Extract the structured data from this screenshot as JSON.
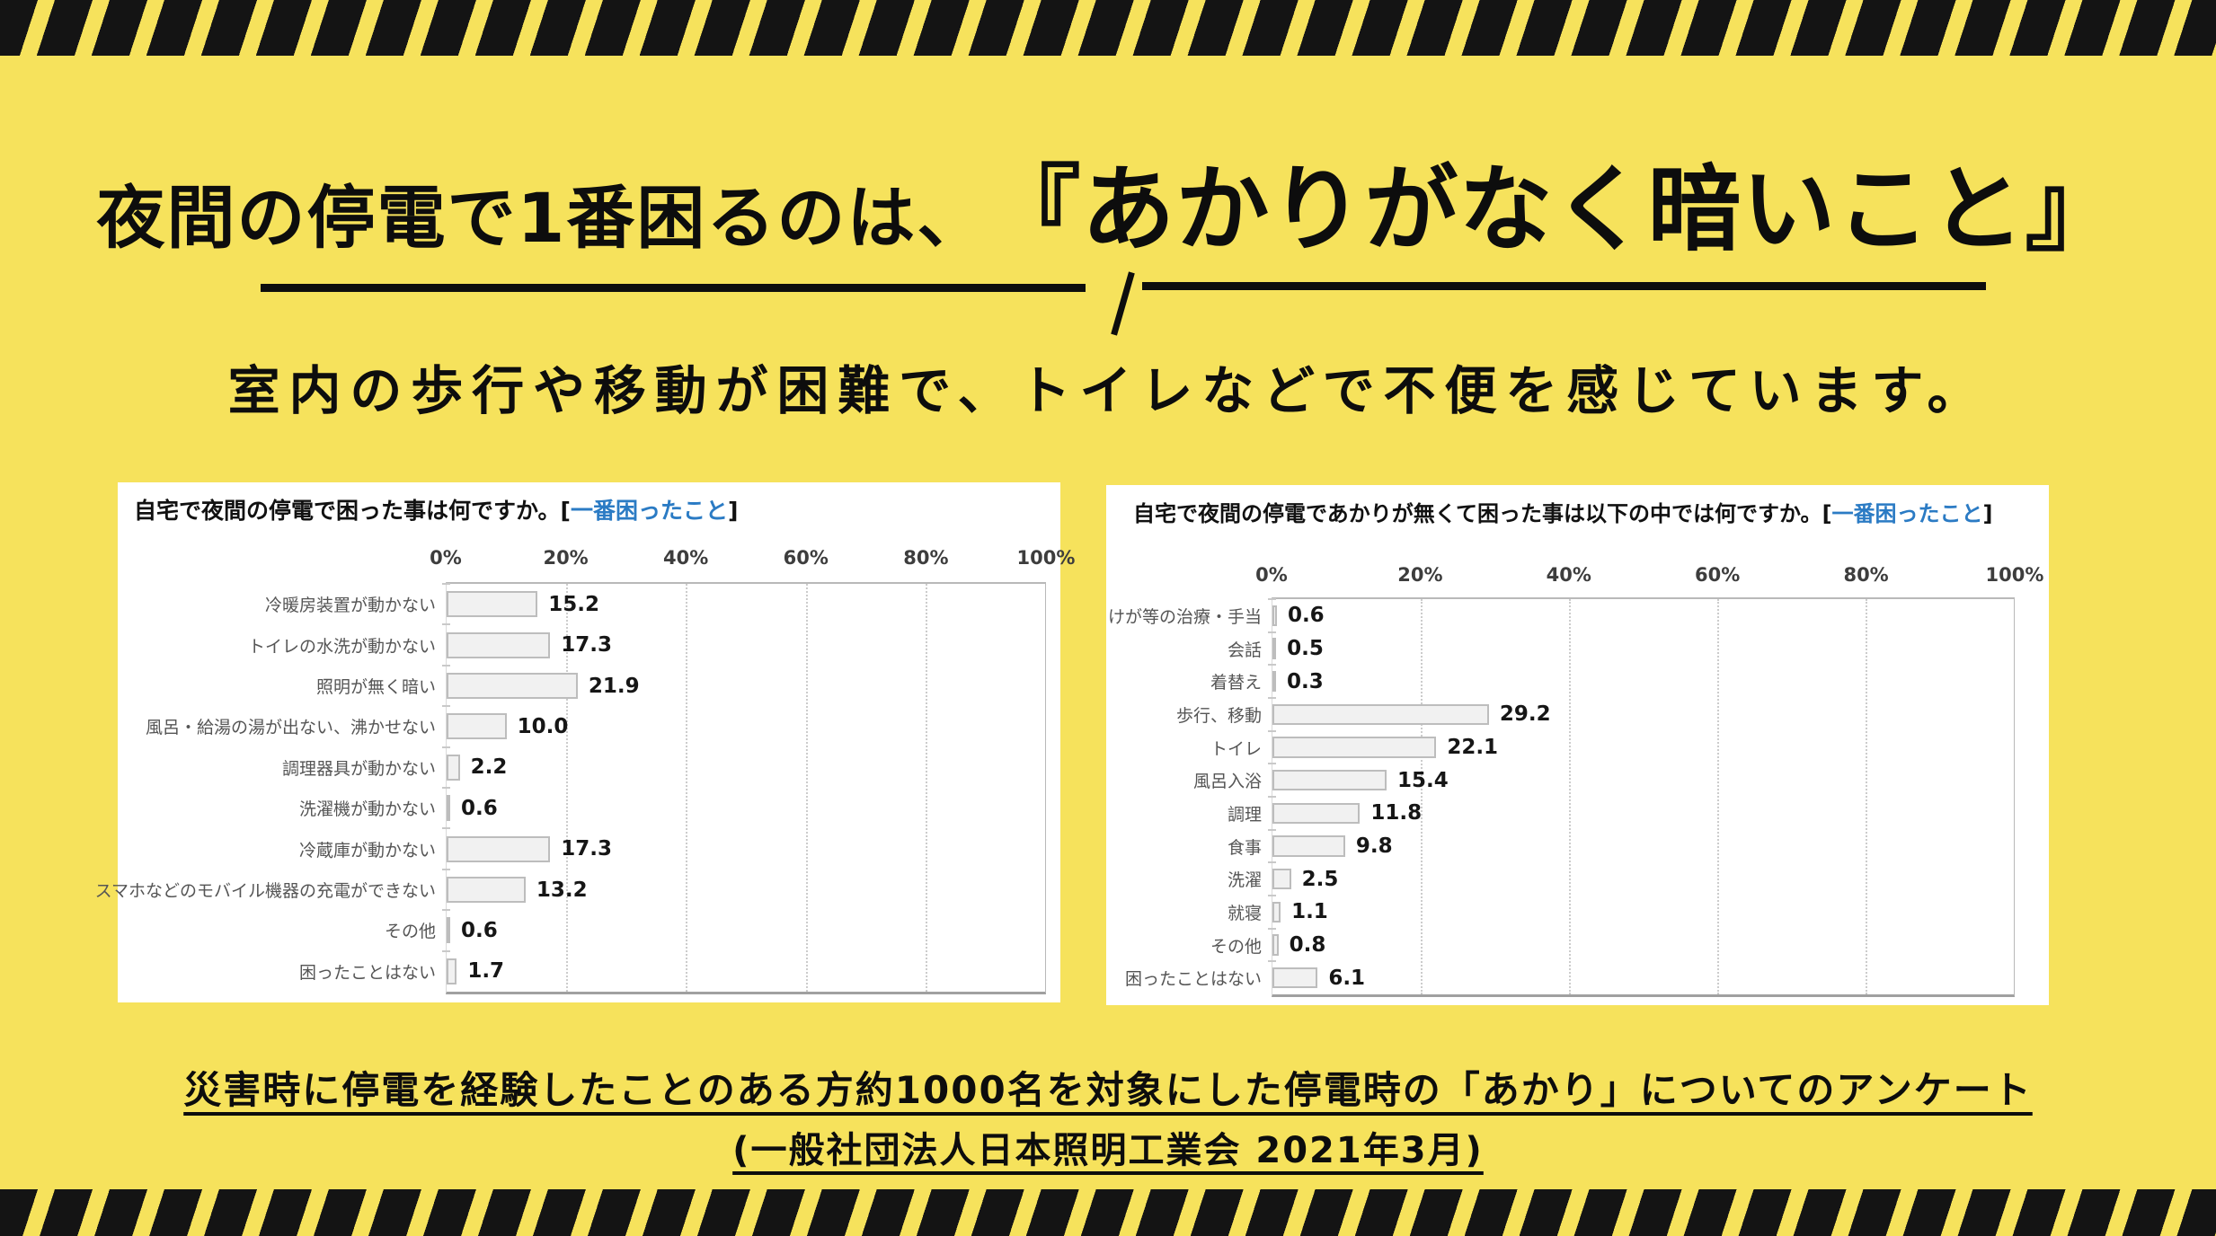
{
  "page": {
    "background_color": "#F6E25C",
    "stripe_color": "#141414",
    "accent_blue": "#2B7BC4"
  },
  "header": {
    "title_prefix": "夜間の停電で1番困るのは、",
    "title_highlight": "『あかりがなく暗いこと』",
    "subtitle": "室内の歩行や移動が困難で、トイレなどで不便を感じています。"
  },
  "footer": {
    "line1": "災害時に停電を経験したことのある方約1000名を対象にした停電時の「あかり」についてのアンケート",
    "line2": "(一般社団法人日本照明工業会 2021年3月)"
  },
  "chart_data": [
    {
      "type": "bar",
      "orientation": "horizontal",
      "title_main": "自宅で夜間の停電で困った事は何ですか。",
      "bracket_open": "[",
      "bracket_label": "一番困ったこと",
      "bracket_close": "]",
      "axis_ticks": [
        "0%",
        "20%",
        "40%",
        "60%",
        "80%",
        "100%"
      ],
      "xlim": [
        0,
        100
      ],
      "grid": true,
      "categories": [
        "冷暖房装置が動かない",
        "トイレの水洗が動かない",
        "照明が無く暗い",
        "風呂・給湯の湯が出ない、沸かせない",
        "調理器具が動かない",
        "洗濯機が動かない",
        "冷蔵庫が動かない",
        "スマホなどのモバイル機器の充電ができない",
        "その他",
        "困ったことはない"
      ],
      "values": [
        15.2,
        17.3,
        21.9,
        10.0,
        2.2,
        0.6,
        17.3,
        13.2,
        0.6,
        1.7
      ],
      "value_labels": [
        "15.2",
        "17.3",
        "21.9",
        "10.0",
        "2.2",
        "0.6",
        "17.3",
        "13.2",
        "0.6",
        "1.7"
      ]
    },
    {
      "type": "bar",
      "orientation": "horizontal",
      "title_main": "自宅で夜間の停電であかりが無くて困った事は以下の中では何ですか。",
      "bracket_open": "[",
      "bracket_label": "一番困ったこと",
      "bracket_close": "]",
      "axis_ticks": [
        "0%",
        "20%",
        "40%",
        "60%",
        "80%",
        "100%"
      ],
      "xlim": [
        0,
        100
      ],
      "grid": true,
      "categories": [
        "けが等の治療・手当",
        "会話",
        "着替え",
        "歩行、移動",
        "トイレ",
        "風呂入浴",
        "調理",
        "食事",
        "洗濯",
        "就寝",
        "その他",
        "困ったことはない"
      ],
      "values": [
        0.6,
        0.5,
        0.3,
        29.2,
        22.1,
        15.4,
        11.8,
        9.8,
        2.5,
        1.1,
        0.8,
        6.1
      ],
      "value_labels": [
        "0.6",
        "0.5",
        "0.3",
        "29.2",
        "22.1",
        "15.4",
        "11.8",
        "9.8",
        "2.5",
        "1.1",
        "0.8",
        "6.1"
      ]
    }
  ]
}
